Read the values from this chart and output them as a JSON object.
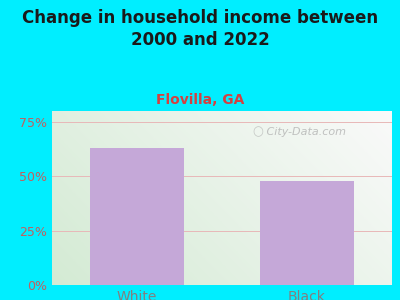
{
  "title": "Change in household income between\n2000 and 2022",
  "subtitle": "Flovilla, GA",
  "categories": [
    "White",
    "Black"
  ],
  "values": [
    63,
    48
  ],
  "bar_color": "#c5a8d8",
  "title_fontsize": 12,
  "subtitle_fontsize": 10,
  "subtitle_color": "#d44040",
  "ytick_color": "#c06060",
  "xtick_color": "#808080",
  "ylim": [
    0,
    80
  ],
  "yticks": [
    0,
    25,
    50,
    75
  ],
  "ytick_labels": [
    "0%",
    "25%",
    "50%",
    "75%"
  ],
  "background_outer": "#00eeff",
  "background_inner_topleft": "#e8f5e8",
  "background_inner_topright": "#f5f5f8",
  "background_inner_bottomleft": "#d4edd4",
  "background_inner_bottomright": "#eeeeee",
  "watermark": " City-Data.com",
  "gridline_color": "#e8b8b8",
  "bar_width": 0.55,
  "fig_width": 4.0,
  "fig_height": 3.0,
  "dpi": 100
}
